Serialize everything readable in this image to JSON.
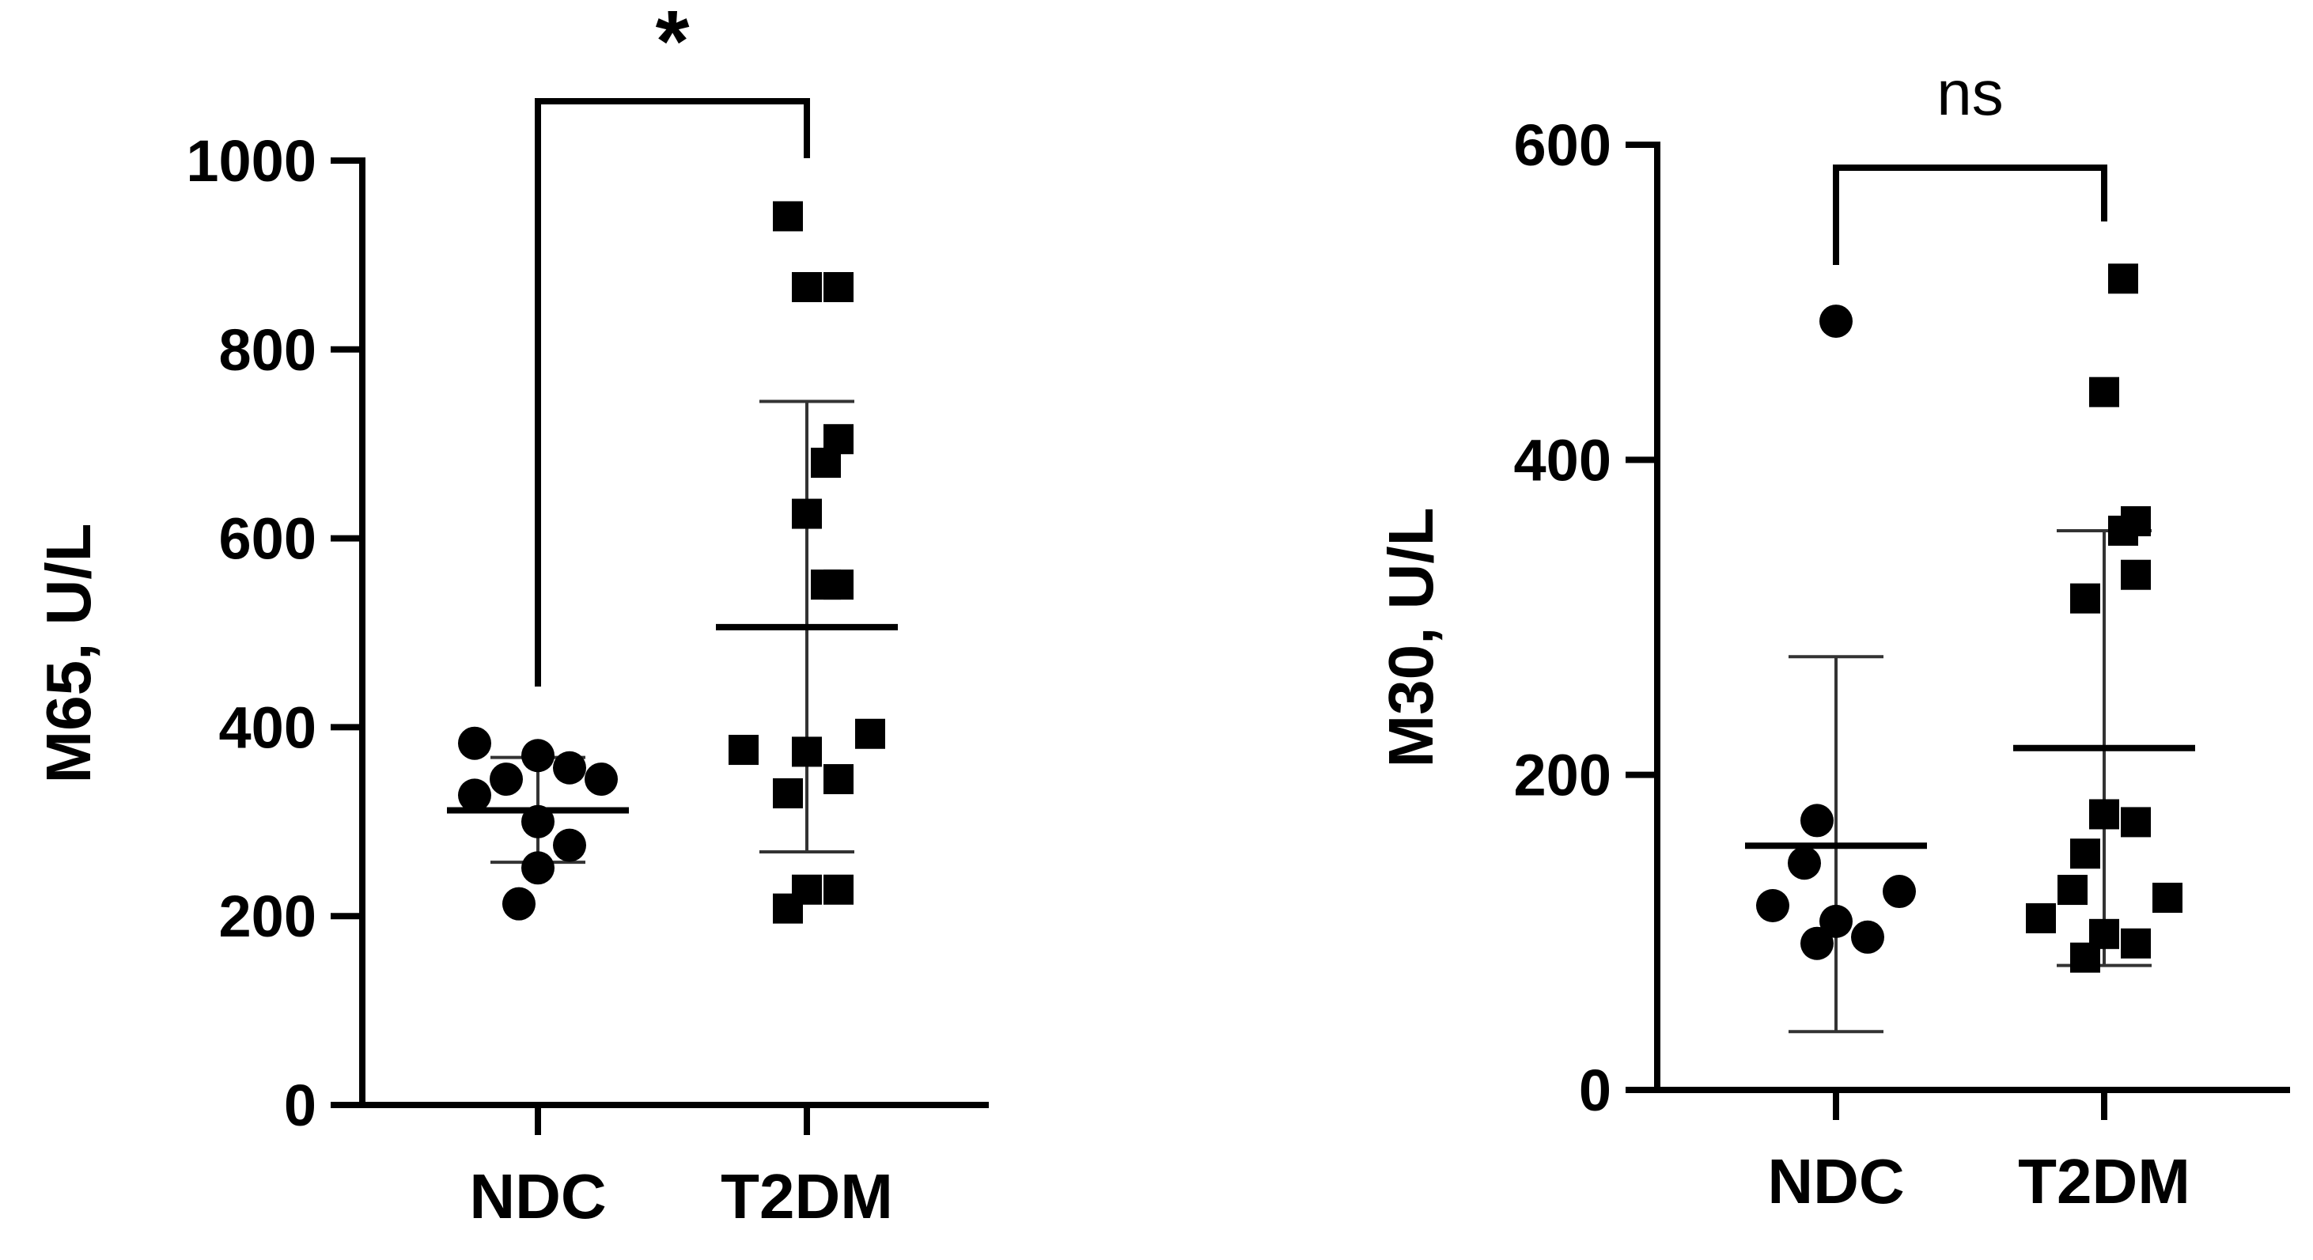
{
  "chart_data": [
    {
      "type": "scatter",
      "ylabel": "M65, U/L",
      "ylim": [
        0,
        1000
      ],
      "yticks": [
        0,
        200,
        400,
        600,
        800,
        1000
      ],
      "ytick_labels": [
        "0",
        "200",
        "400",
        "600",
        "800",
        "1000"
      ],
      "categories": [
        "NDC",
        "T2DM"
      ],
      "significance": "*",
      "series": [
        {
          "category": "NDC",
          "marker": "circle",
          "values": [
            213,
            251,
            275,
            300,
            328,
            345,
            345,
            357,
            370,
            383
          ],
          "mean": 312,
          "error": [
            257,
            368
          ]
        },
        {
          "category": "T2DM",
          "marker": "square",
          "values": [
            208,
            228,
            228,
            330,
            345,
            374,
            376,
            393,
            551,
            551,
            626,
            680,
            705,
            866,
            866,
            941
          ],
          "mean": 506,
          "error": [
            268,
            745
          ]
        }
      ]
    },
    {
      "type": "scatter",
      "ylabel": "M30, U/L",
      "ylim": [
        0,
        600
      ],
      "yticks": [
        0,
        200,
        400,
        600
      ],
      "ytick_labels": [
        "0",
        "200",
        "400",
        "600"
      ],
      "categories": [
        "NDC",
        "T2DM"
      ],
      "significance": "ns",
      "series": [
        {
          "category": "NDC",
          "marker": "circle",
          "values": [
            93,
            97,
            107,
            117,
            126,
            144,
            171,
            488
          ],
          "mean": 155,
          "error": [
            37,
            275
          ]
        },
        {
          "category": "T2DM",
          "marker": "square",
          "values": [
            84,
            93,
            99,
            109,
            122,
            127,
            150,
            170,
            175,
            312,
            327,
            355,
            361,
            443,
            515
          ],
          "mean": 217,
          "error": [
            79,
            355
          ]
        }
      ]
    }
  ]
}
